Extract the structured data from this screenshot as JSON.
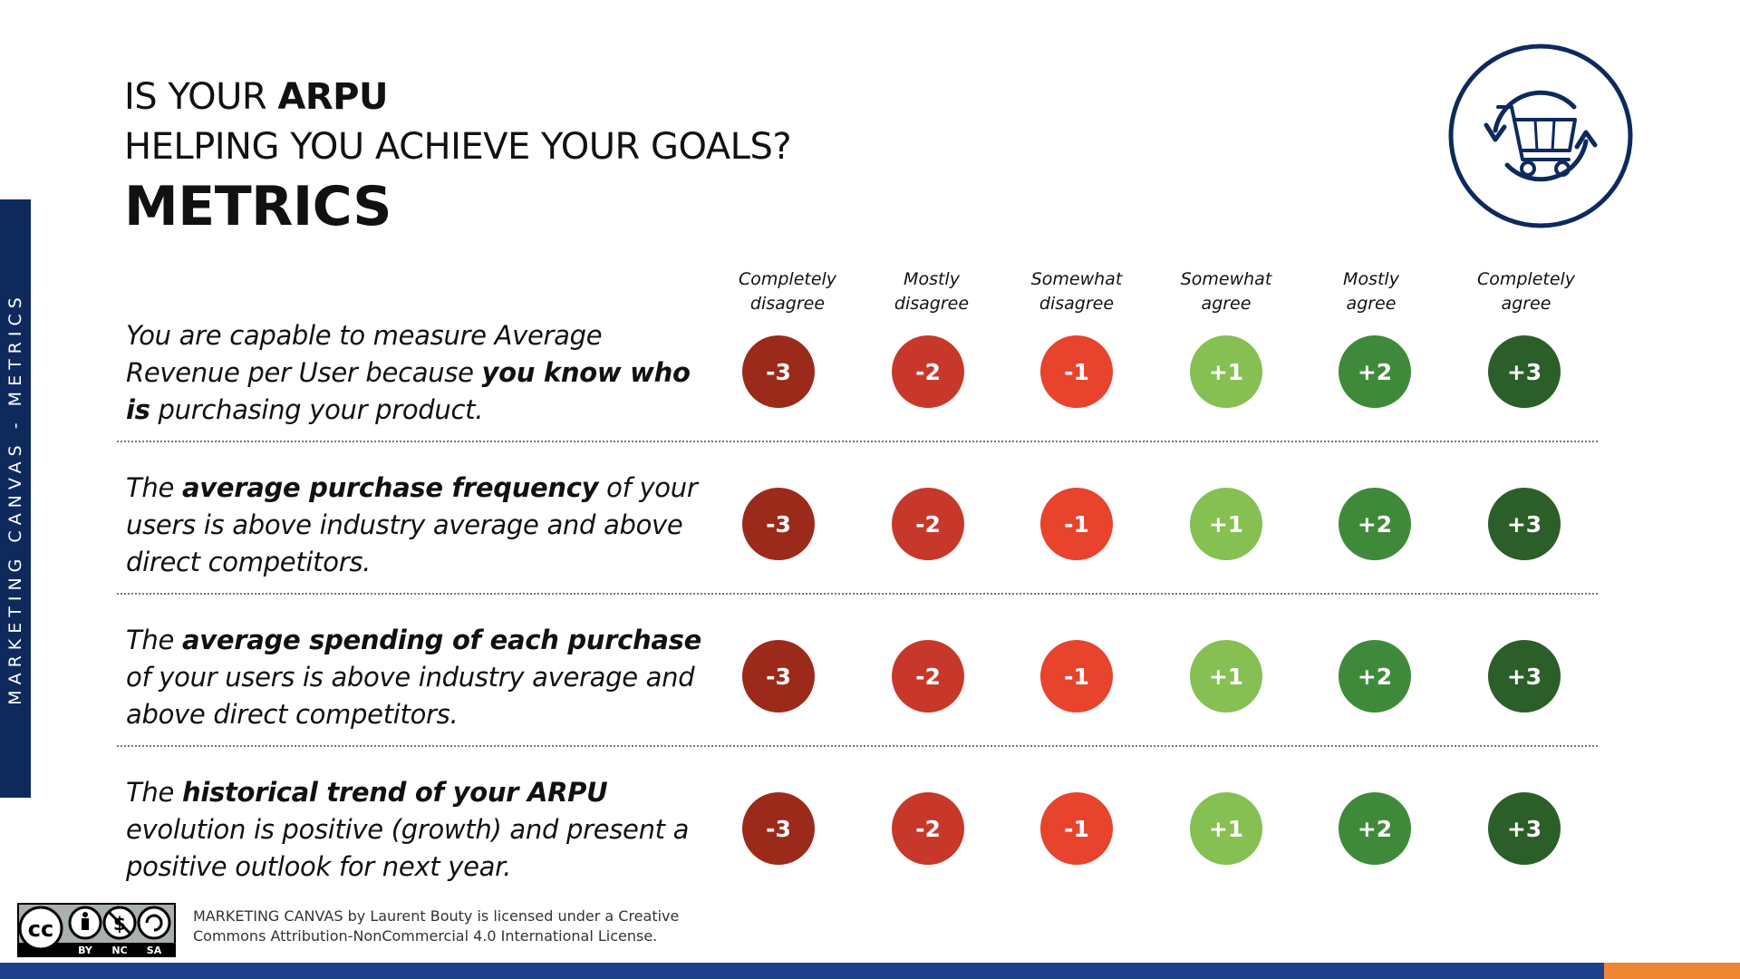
{
  "sidebar": {
    "label": "MARKETING CANVAS - METRICS"
  },
  "header": {
    "line1_prefix": "IS YOUR ",
    "line1_bold": "ARPU",
    "line2": "HELPING YOU ACHIEVE YOUR GOALS?",
    "title": "METRICS"
  },
  "logo": {
    "icon": "shopping-cart-cycle-icon",
    "color": "#0e2a5c"
  },
  "scale": {
    "headers": [
      [
        "Completely",
        "disagree"
      ],
      [
        "Mostly",
        "disagree"
      ],
      [
        "Somewhat",
        "disagree"
      ],
      [
        "Somewhat",
        "agree"
      ],
      [
        "Mostly",
        "agree"
      ],
      [
        "Completely",
        "agree"
      ]
    ],
    "values": [
      "-3",
      "-2",
      "-1",
      "+1",
      "+2",
      "+3"
    ],
    "colors": [
      "#9c2a1b",
      "#c8382a",
      "#e8432d",
      "#86bf52",
      "#3f8a3a",
      "#2b5e28"
    ]
  },
  "statements": [
    {
      "parts": [
        {
          "text": "You are capable to measure Average Revenue per User because ",
          "bold": false
        },
        {
          "text": "you know who is",
          "bold": true
        },
        {
          "text": " purchasing your product.",
          "bold": false
        }
      ]
    },
    {
      "parts": [
        {
          "text": "The ",
          "bold": false
        },
        {
          "text": "average purchase frequency",
          "bold": true
        },
        {
          "text": " of your users is above industry average and above direct competitors.",
          "bold": false
        }
      ]
    },
    {
      "parts": [
        {
          "text": "The ",
          "bold": false
        },
        {
          "text": "average spending of each purchase",
          "bold": true
        },
        {
          "text": " of your users is above industry average and above direct competitors.",
          "bold": false
        }
      ]
    },
    {
      "parts": [
        {
          "text": "The ",
          "bold": false
        },
        {
          "text": "historical trend of your ARPU",
          "bold": true
        },
        {
          "text": " evolution is positive (growth) and present a positive outlook for next year.",
          "bold": false
        }
      ]
    }
  ],
  "license": {
    "badge_labels": [
      "BY",
      "NC",
      "SA"
    ],
    "badge_cc": "cc",
    "line1": "MARKETING CANVAS by Laurent Bouty is licensed under a Creative",
    "line2": "Commons Attribution-NonCommercial 4.0 International License."
  },
  "colors": {
    "navy": "#0e2a5c",
    "bottom_bar": "#1d428a",
    "accent": "#ef8632"
  }
}
